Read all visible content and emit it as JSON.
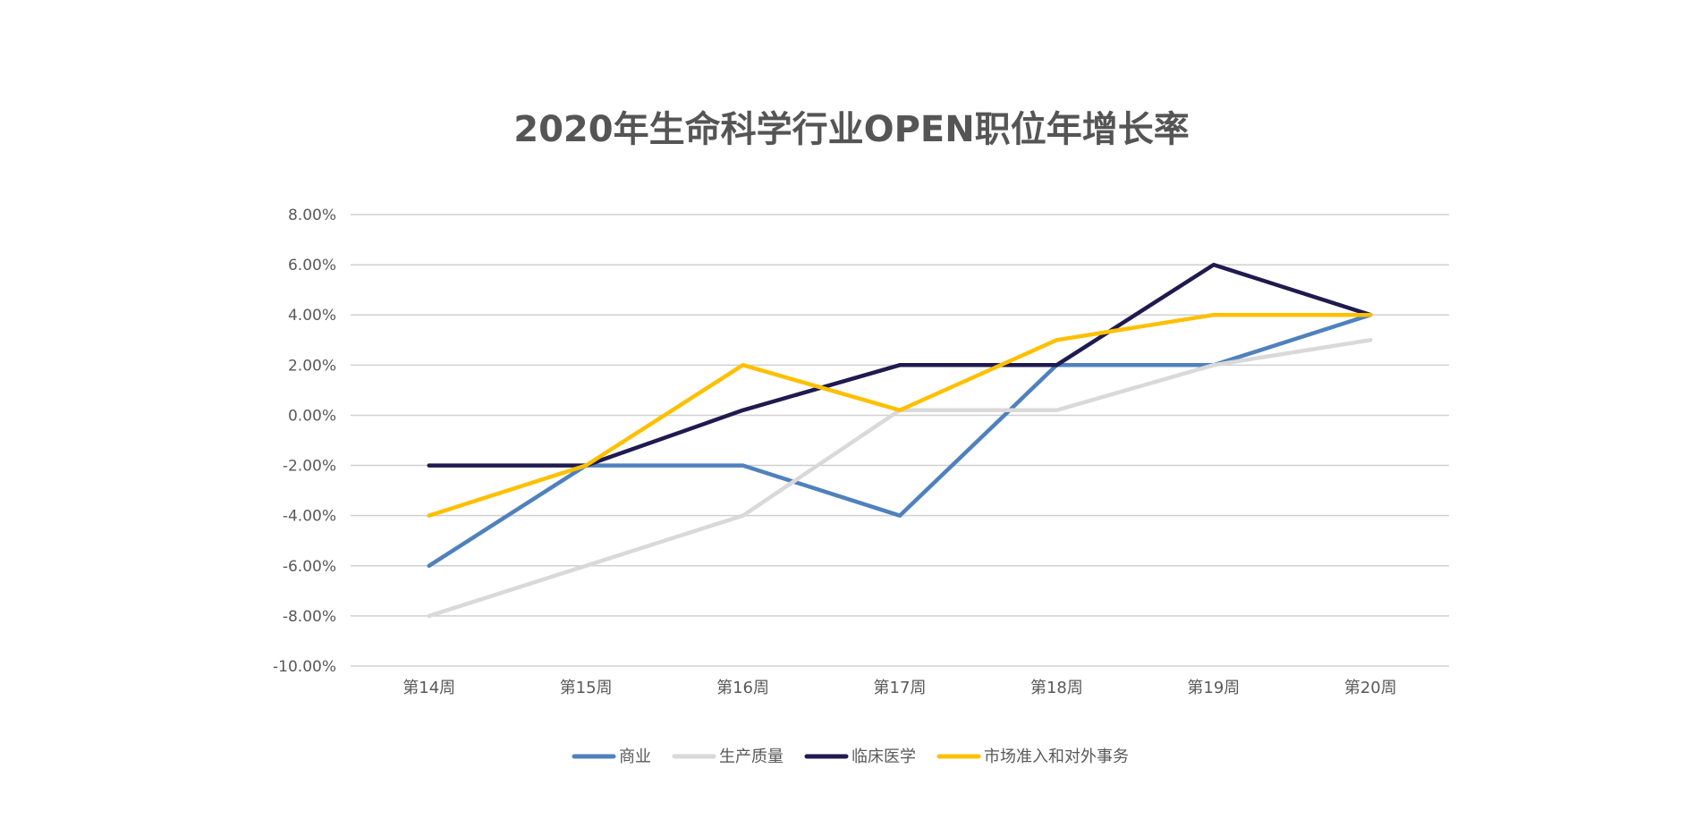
{
  "chart_data": {
    "type": "line",
    "title": "2020年生命科学行业OPEN职位年增长率",
    "xlabel": "",
    "ylabel": "",
    "categories": [
      "第14周",
      "第15周",
      "第16周",
      "第17周",
      "第18周",
      "第19周",
      "第20周"
    ],
    "ylim": [
      -10,
      8
    ],
    "yticks": [
      "8.00%",
      "6.00%",
      "4.00%",
      "2.00%",
      "0.00%",
      "-2.00%",
      "-4.00%",
      "-6.00%",
      "-8.00%",
      "-10.00%"
    ],
    "grid": true,
    "legend_position": "bottom",
    "series": [
      {
        "name": "商业",
        "color": "#4F81BD",
        "values": [
          -6,
          -2,
          -2,
          -4,
          2,
          2,
          4
        ]
      },
      {
        "name": "生产质量",
        "color": "#D9D9D9",
        "values": [
          -8,
          -6,
          -4,
          0.2,
          0.2,
          2,
          3
        ]
      },
      {
        "name": "临床医学",
        "color": "#1F1A4F",
        "values": [
          -2,
          -2,
          0.2,
          2,
          2,
          6,
          4
        ]
      },
      {
        "name": "市场准入和对外事务",
        "color": "#FFC000",
        "values": [
          -4,
          -2,
          2,
          0.2,
          3,
          4,
          4
        ]
      }
    ]
  }
}
